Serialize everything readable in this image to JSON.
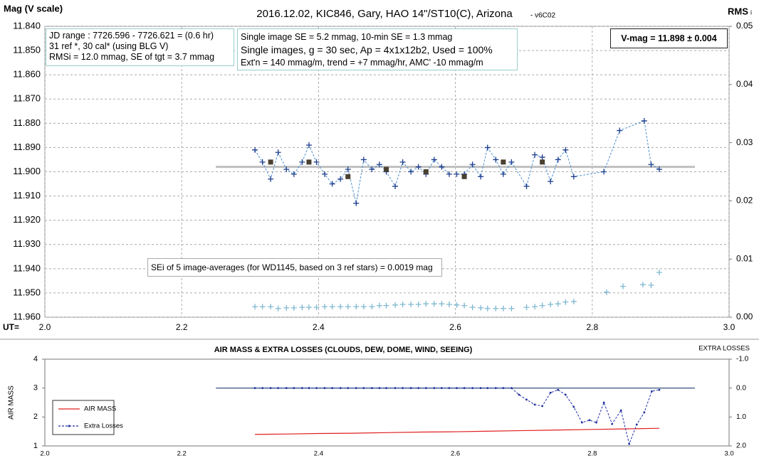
{
  "chart_data": [
    {
      "type": "scatter",
      "title": "2016.12.02, KIC846, Gary, HAO 14\"/ST10(C), Arizona",
      "subtitle": "- v6C02",
      "y_label": "Mag (V scale)",
      "y2_label": "RMS",
      "y2_label_sub": "i",
      "x_label": "UT=",
      "xlim": [
        2.0,
        3.0
      ],
      "xticks": [
        {
          "value": 2.0,
          "label": "2.0"
        },
        2.2,
        2.4,
        2.6,
        2.8,
        {
          "value": 3.0,
          "label": "3.0"
        }
      ],
      "ylim": [
        11.96,
        11.84
      ],
      "yticks": [
        {
          "value": 11.84,
          "label": "11.840"
        },
        {
          "value": 11.85,
          "label": "11.850"
        },
        {
          "value": 11.86,
          "label": "11.860"
        },
        {
          "value": 11.87,
          "label": "11.870"
        },
        {
          "value": 11.88,
          "label": "11.880"
        },
        {
          "value": 11.89,
          "label": "11.890"
        },
        {
          "value": 11.9,
          "label": "11.900"
        },
        {
          "value": 11.91,
          "label": "11.910"
        },
        {
          "value": 11.92,
          "label": "11.920"
        },
        {
          "value": 11.93,
          "label": "11.930"
        },
        {
          "value": 11.94,
          "label": "11.940"
        },
        {
          "value": 11.95,
          "label": "11.950"
        },
        {
          "value": 11.96,
          "label": "11.960"
        }
      ],
      "y2lim": [
        0,
        0.05
      ],
      "y2ticks": [
        {
          "value": 0,
          "label": "0.00"
        },
        0.01,
        0.02,
        0.03,
        0.04,
        0.05
      ],
      "grid": true,
      "series": [
        {
          "color": "#1f3f8f",
          "marker": "plus",
          "line": "dashed",
          "line_color": "#4f8fcf",
          "x": [
            2.307,
            2.318,
            2.33,
            2.341,
            2.353,
            2.364,
            2.376,
            2.386,
            2.397,
            2.409,
            2.42,
            2.432,
            2.443,
            2.455,
            2.466,
            2.478,
            2.489,
            2.499,
            2.512,
            2.523,
            2.535,
            2.546,
            2.557,
            2.569,
            2.58,
            2.591,
            2.602,
            2.613,
            2.625,
            2.637,
            2.647,
            2.659,
            2.67,
            2.682,
            2.704,
            2.716,
            2.727,
            2.739,
            2.75,
            2.761,
            2.773,
            2.817,
            2.84,
            2.876,
            2.886,
            2.898
          ],
          "values": [
            11.891,
            11.896,
            11.903,
            11.892,
            11.899,
            11.901,
            11.896,
            11.889,
            11.896,
            11.901,
            11.905,
            11.903,
            11.899,
            11.913,
            11.895,
            11.899,
            11.897,
            11.9,
            11.906,
            11.896,
            11.9,
            11.898,
            11.901,
            11.895,
            11.898,
            11.901,
            11.901,
            11.901,
            11.897,
            11.902,
            11.89,
            11.895,
            11.901,
            11.896,
            11.906,
            11.893,
            11.894,
            11.904,
            11.895,
            11.891,
            11.902,
            11.9,
            11.883,
            11.879,
            11.897,
            11.899
          ]
        },
        {
          "color": "#4a4030",
          "marker": "square",
          "x": [
            2.33,
            2.386,
            2.443,
            2.499,
            2.557,
            2.613,
            2.67,
            2.727
          ],
          "values": [
            11.896,
            11.896,
            11.902,
            11.899,
            11.9,
            11.902,
            11.896,
            11.896
          ]
        },
        {
          "color": "#7fb8d0",
          "marker": "plus",
          "axis": "y2",
          "x": [
            2.307,
            2.318,
            2.33,
            2.341,
            2.353,
            2.364,
            2.376,
            2.386,
            2.397,
            2.409,
            2.42,
            2.432,
            2.443,
            2.455,
            2.466,
            2.478,
            2.489,
            2.499,
            2.512,
            2.523,
            2.535,
            2.546,
            2.557,
            2.569,
            2.58,
            2.591,
            2.602,
            2.613,
            2.625,
            2.637,
            2.647,
            2.659,
            2.67,
            2.682,
            2.704,
            2.716,
            2.727,
            2.739,
            2.75,
            2.761,
            2.773,
            2.821,
            2.845,
            2.874,
            2.886,
            2.898
          ],
          "values": [
            0.0018,
            0.0018,
            0.0018,
            0.0015,
            0.0016,
            0.0016,
            0.0017,
            0.0017,
            0.0017,
            0.0018,
            0.0018,
            0.0018,
            0.0018,
            0.0018,
            0.0018,
            0.0018,
            0.002,
            0.002,
            0.0021,
            0.0022,
            0.0022,
            0.0022,
            0.0023,
            0.0023,
            0.0023,
            0.0022,
            0.0021,
            0.002,
            0.0017,
            0.0016,
            0.0015,
            0.0015,
            0.0015,
            0.0015,
            0.0017,
            0.0018,
            0.002,
            0.0022,
            0.0023,
            0.0026,
            0.0027,
            0.0043,
            0.0053,
            0.0056,
            0.0055,
            0.0077
          ]
        }
      ],
      "reference_line": {
        "value": 11.898,
        "x": [
          2.25,
          2.95
        ],
        "color": "#bfbfbf",
        "width": 3
      },
      "annotations": [
        {
          "lines": [
            "JD range : 7726.596 - 7726.621 = (0.6 hr)",
            "31 ref *, 30 cal* (using BLG V)",
            "RMSi = 12.0 mmag, SE of tgt = 3.7 mmag"
          ]
        },
        {
          "lines": [
            "Single image SE = 5.2 mmag, 10-min SE = 1.3 mmag",
            "Single images, g = 30 sec, Ap = 4x1x12b2, Used = 100%",
            "Ext'n = 140 mmag/m, trend = +7 mmag/hr, AMC' -10 mmag/m"
          ]
        },
        {
          "lines": [
            "V-mag = 11.898 ± 0.004"
          ]
        },
        {
          "lines": [
            "SEi of 5 image-averages (for WD1145, based on 3 ref stars) = 0.0019 mag"
          ]
        }
      ]
    },
    {
      "type": "line",
      "title": "AIR MASS & EXTRA LOSSES (CLOUDS, DEW, DOME, WIND, SEEING)",
      "y_label": "AIR MASS",
      "y2_label": "EXTRA LOSSES",
      "xlim": [
        2.0,
        3.0
      ],
      "xticks": [
        {
          "value": 2.0,
          "label": "2.0"
        },
        2.2,
        2.4,
        2.6,
        2.8,
        {
          "value": 3.0,
          "label": "3.0"
        }
      ],
      "ylim": [
        1,
        4
      ],
      "yticks": [
        1,
        2,
        3,
        4
      ],
      "y2lim": [
        2,
        -1
      ],
      "y2ticks": [
        {
          "value": 2,
          "label": "2.0"
        },
        {
          "value": 1,
          "label": "1.0"
        },
        {
          "value": 0,
          "label": "0.0"
        },
        {
          "value": -1,
          "label": "-1.0"
        }
      ],
      "grid": false,
      "legend": "lower-left",
      "series": [
        {
          "name": "AIR MASS",
          "color": "#e02020",
          "line": "solid",
          "x": [
            2.307,
            2.35,
            2.4,
            2.45,
            2.5,
            2.55,
            2.6,
            2.65,
            2.7,
            2.75,
            2.8,
            2.85,
            2.898
          ],
          "values": [
            1.4,
            1.41,
            1.43,
            1.44,
            1.46,
            1.48,
            1.49,
            1.51,
            1.53,
            1.55,
            1.57,
            1.59,
            1.61
          ]
        },
        {
          "name": "Extra Losses",
          "color": "#2030a0",
          "line": "dashed",
          "marker": "dot",
          "axis": "y2",
          "x": [
            2.307,
            2.318,
            2.33,
            2.341,
            2.353,
            2.364,
            2.376,
            2.386,
            2.397,
            2.409,
            2.42,
            2.432,
            2.443,
            2.455,
            2.466,
            2.478,
            2.489,
            2.499,
            2.512,
            2.523,
            2.535,
            2.546,
            2.557,
            2.569,
            2.58,
            2.591,
            2.602,
            2.613,
            2.625,
            2.637,
            2.647,
            2.659,
            2.67,
            2.682,
            2.693,
            2.704,
            2.716,
            2.727,
            2.739,
            2.75,
            2.761,
            2.773,
            2.785,
            2.796,
            2.806,
            2.817,
            2.829,
            2.842,
            2.854,
            2.865,
            2.876,
            2.887,
            2.898
          ],
          "values": [
            0,
            0,
            0,
            0,
            0,
            0,
            0,
            0,
            0,
            0,
            0,
            0,
            0,
            0,
            0,
            0,
            0,
            0,
            0,
            0,
            0,
            0,
            0,
            0,
            0,
            0,
            0,
            0,
            0,
            0,
            0,
            0,
            0,
            0,
            0.23,
            0.4,
            0.57,
            0.62,
            0.16,
            0.06,
            0.23,
            0.65,
            1.19,
            1.11,
            1.19,
            0.5,
            1.24,
            0.77,
            1.93,
            1.26,
            0.84,
            0.11,
            0.06
          ]
        }
      ],
      "reference_line": {
        "value": 0,
        "axis": "y2",
        "x": [
          2.25,
          2.95
        ],
        "color": "#1f3f6f",
        "width": 1.2
      }
    }
  ]
}
